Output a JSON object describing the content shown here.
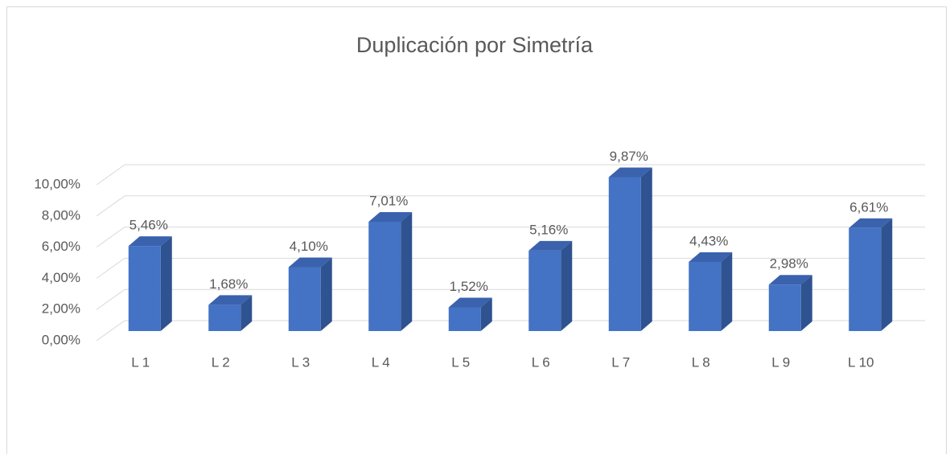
{
  "chart_data": {
    "type": "bar",
    "title": "Duplicación por Simetría",
    "categories": [
      "L 1",
      "L 2",
      "L 3",
      "L 4",
      "L 5",
      "L 6",
      "L 7",
      "L 8",
      "L 9",
      "L 10"
    ],
    "values": [
      5.46,
      1.68,
      4.1,
      7.01,
      1.52,
      5.16,
      9.87,
      4.43,
      2.98,
      6.61
    ],
    "value_labels": [
      "5,46%",
      "1,68%",
      "4,10%",
      "7,01%",
      "1,52%",
      "5,16%",
      "9,87%",
      "4,43%",
      "2,98%",
      "6,61%"
    ],
    "color": "#4472c4",
    "ylim": [
      0,
      10
    ],
    "yticks": [
      {
        "value": 0,
        "label": "0,00%"
      },
      {
        "value": 2,
        "label": "2,00%"
      },
      {
        "value": 4,
        "label": "4,00%"
      },
      {
        "value": 6,
        "label": "6,00%"
      },
      {
        "value": 8,
        "label": "8,00%"
      },
      {
        "value": 10,
        "label": "10,00%"
      }
    ],
    "grid": true
  }
}
